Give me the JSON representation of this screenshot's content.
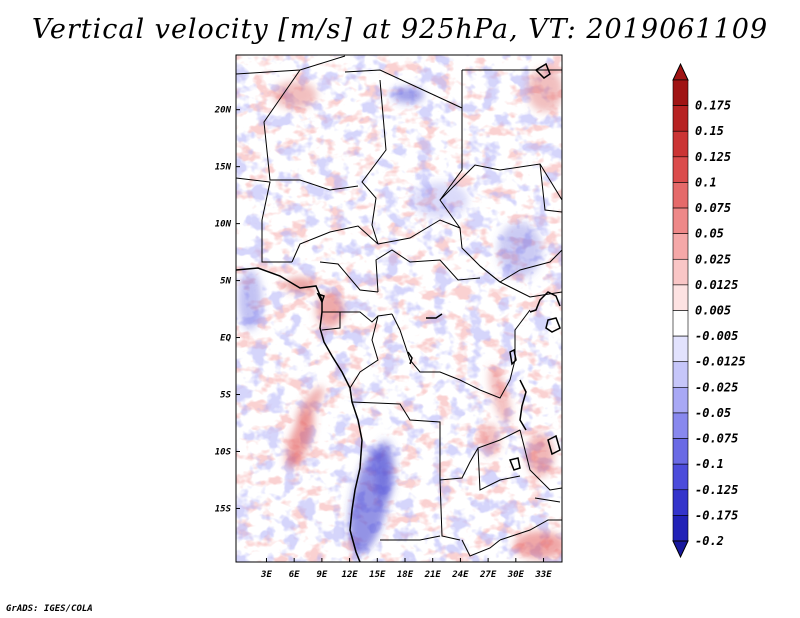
{
  "title": "Vertical velocity [m/s] at 925hPa, VT: 2019061109",
  "credit": "GrADS: IGES/COLA",
  "map": {
    "lon_range": [
      -0.3,
      35.0
    ],
    "lat_range": [
      -19.7,
      24.8
    ],
    "lon_ticks": [
      {
        "value": 3,
        "label": "3E"
      },
      {
        "value": 6,
        "label": "6E"
      },
      {
        "value": 9,
        "label": "9E"
      },
      {
        "value": 12,
        "label": "12E"
      },
      {
        "value": 15,
        "label": "15E"
      },
      {
        "value": 18,
        "label": "18E"
      },
      {
        "value": 21,
        "label": "21E"
      },
      {
        "value": 24,
        "label": "24E"
      },
      {
        "value": 27,
        "label": "27E"
      },
      {
        "value": 30,
        "label": "30E"
      },
      {
        "value": 33,
        "label": "33E"
      }
    ],
    "lat_ticks": [
      {
        "value": 20,
        "label": "20N"
      },
      {
        "value": 15,
        "label": "15N"
      },
      {
        "value": 10,
        "label": "10N"
      },
      {
        "value": 5,
        "label": "5N"
      },
      {
        "value": 0,
        "label": "EQ"
      },
      {
        "value": -5,
        "label": "5S"
      },
      {
        "value": -10,
        "label": "10S"
      },
      {
        "value": -15,
        "label": "15S"
      }
    ]
  },
  "colorbar": {
    "levels": [
      {
        "label": "0.175",
        "color": "#a01414"
      },
      {
        "label": "0.15",
        "color": "#b72222"
      },
      {
        "label": "0.125",
        "color": "#cb3434"
      },
      {
        "label": "0.1",
        "color": "#db4c4c"
      },
      {
        "label": "0.075",
        "color": "#e56a6a"
      },
      {
        "label": "0.05",
        "color": "#ee8888"
      },
      {
        "label": "0.025",
        "color": "#f5a8a8"
      },
      {
        "label": "0.0125",
        "color": "#f9c6c6"
      },
      {
        "label": "0.005",
        "color": "#fde2e2"
      },
      {
        "label": "-0.005",
        "color": "#ffffff"
      },
      {
        "label": "-0.0125",
        "color": "#e2e2fd"
      },
      {
        "label": "-0.025",
        "color": "#c6c6f9"
      },
      {
        "label": "-0.05",
        "color": "#a8a8f5"
      },
      {
        "label": "-0.075",
        "color": "#8888ee"
      },
      {
        "label": "-0.1",
        "color": "#6a6ae5"
      },
      {
        "label": "-0.125",
        "color": "#4c4cdb"
      },
      {
        "label": "-0.175",
        "color": "#3434cb"
      },
      {
        "label": "-0.2",
        "color": "#2222b7"
      }
    ],
    "top_color": "#a01414",
    "bottom_color": "#18189e"
  }
}
